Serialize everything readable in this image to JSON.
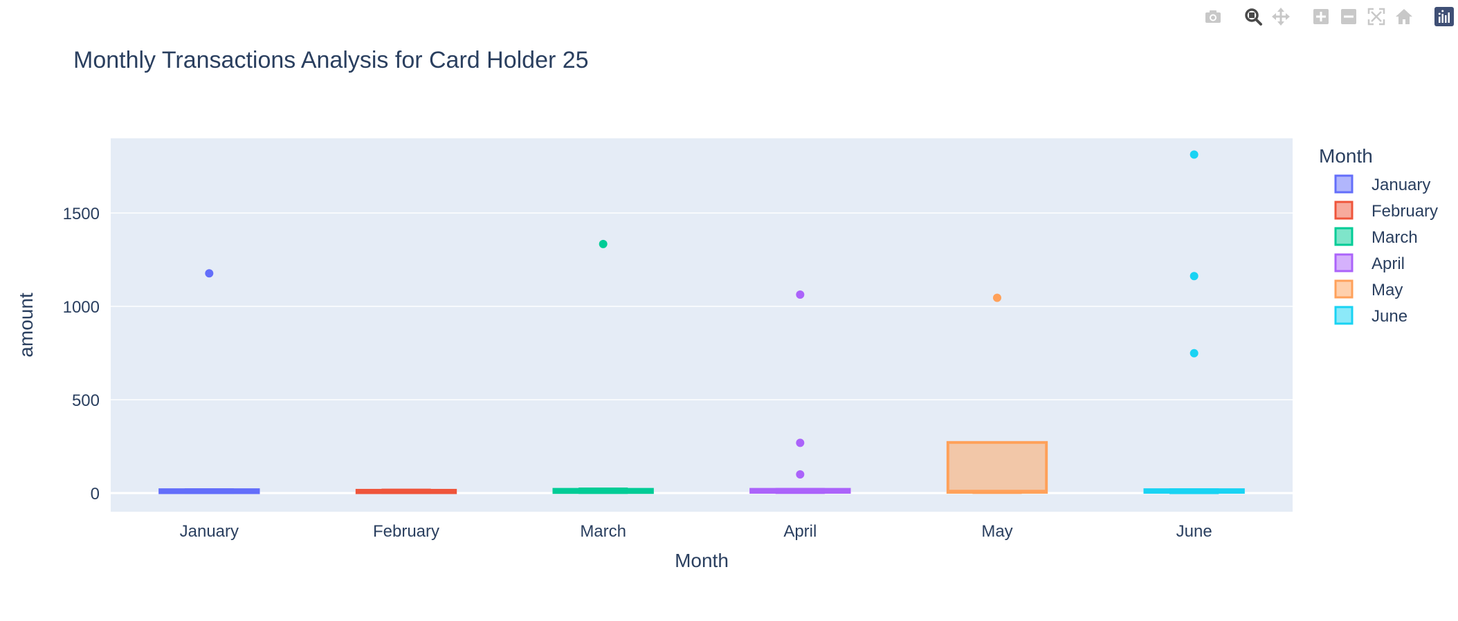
{
  "modebar": {
    "buttons": [
      {
        "name": "camera-icon",
        "label": "Download plot as a png"
      },
      {
        "name": "zoom-icon",
        "label": "Zoom",
        "active": true
      },
      {
        "name": "pan-icon",
        "label": "Pan"
      },
      {
        "name": "zoom-in-icon",
        "label": "Zoom in"
      },
      {
        "name": "zoom-out-icon",
        "label": "Zoom out"
      },
      {
        "name": "autoscale-icon",
        "label": "Autoscale"
      },
      {
        "name": "home-icon",
        "label": "Reset axes"
      },
      {
        "name": "plotly-logo-icon",
        "label": "Produced with Plotly"
      }
    ]
  },
  "chart_data": {
    "type": "box",
    "title": "Monthly Transactions Analysis for Card Holder 25",
    "xlabel": "Month",
    "ylabel": "amount",
    "ylim": [
      -100,
      1900
    ],
    "yticks": [
      0,
      500,
      1000,
      1500
    ],
    "grid": true,
    "categories": [
      "January",
      "February",
      "March",
      "April",
      "May",
      "June"
    ],
    "legend": {
      "title": "Month",
      "position": "right"
    },
    "series": [
      {
        "name": "January",
        "color": "#636efa",
        "q1": 2,
        "median": 10,
        "q3": 18,
        "lower_fence": 1,
        "upper_fence": 20,
        "outliers": [
          1177
        ]
      },
      {
        "name": "February",
        "color": "#ef553b",
        "q1": 2,
        "median": 10,
        "q3": 15,
        "lower_fence": 1,
        "upper_fence": 18,
        "outliers": []
      },
      {
        "name": "March",
        "color": "#00cc96",
        "q1": 3,
        "median": 12,
        "q3": 20,
        "lower_fence": 1,
        "upper_fence": 24,
        "outliers": [
          1334
        ]
      },
      {
        "name": "April",
        "color": "#ab63fa",
        "q1": 4,
        "median": 11,
        "q3": 20,
        "lower_fence": 1,
        "upper_fence": 22,
        "outliers": [
          1063,
          269,
          100
        ]
      },
      {
        "name": "May",
        "color": "#ffa15a",
        "q1": 4,
        "median": 10,
        "q3": 271,
        "lower_fence": 1,
        "upper_fence": 271,
        "outliers": [
          1046
        ]
      },
      {
        "name": "June",
        "color": "#19d3f3",
        "q1": 4,
        "median": 10,
        "q3": 18,
        "lower_fence": 0,
        "upper_fence": 20,
        "outliers": [
          1813,
          1162,
          749
        ]
      }
    ]
  }
}
